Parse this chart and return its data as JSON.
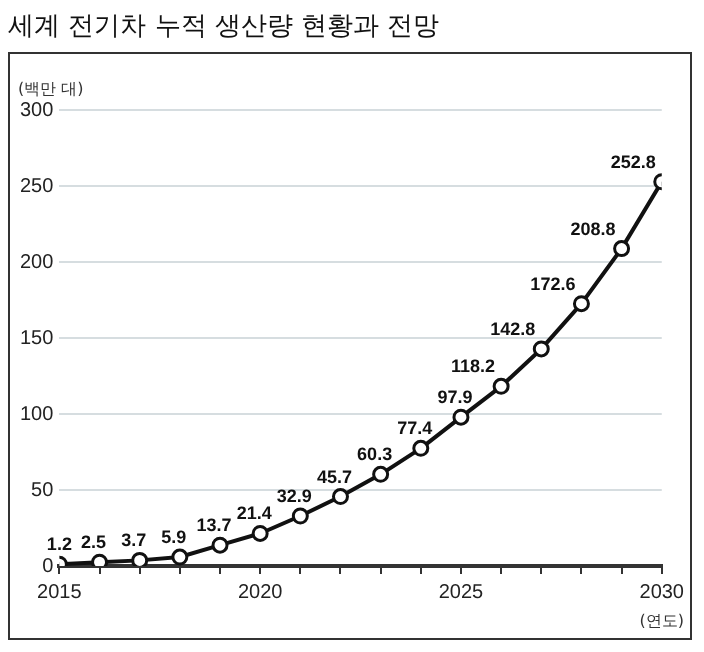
{
  "chart_data": {
    "type": "line",
    "title": "세계 전기차 누적 생산량 현황과 전망",
    "ylabel": "(백만 대)",
    "xlabel": "(연도)",
    "x": [
      2015,
      2016,
      2017,
      2018,
      2019,
      2020,
      2021,
      2022,
      2023,
      2024,
      2025,
      2026,
      2027,
      2028,
      2029,
      2030
    ],
    "series": [
      {
        "color": "#111111",
        "values": [
          1.2,
          2.5,
          3.7,
          5.9,
          13.7,
          21.4,
          32.9,
          45.7,
          60.3,
          77.4,
          97.9,
          118.2,
          142.8,
          172.6,
          208.8,
          252.8
        ]
      }
    ],
    "xlim": [
      2015,
      2030
    ],
    "xticks": [
      2015,
      {
        "value": 2016,
        "label": null
      },
      {
        "value": 2017,
        "label": null
      },
      {
        "value": 2018,
        "label": null
      },
      {
        "value": 2019,
        "label": null
      },
      2020,
      {
        "value": 2021,
        "label": null
      },
      {
        "value": 2022,
        "label": null
      },
      {
        "value": 2023,
        "label": null
      },
      {
        "value": 2024,
        "label": null
      },
      2025,
      {
        "value": 2026,
        "label": null
      },
      {
        "value": 2027,
        "label": null
      },
      {
        "value": 2028,
        "label": null
      },
      {
        "value": 2029,
        "label": null
      },
      2030
    ],
    "ylim": [
      0,
      300
    ],
    "yticks": [
      0,
      50,
      100,
      150,
      200,
      250,
      300
    ],
    "grid": "y",
    "marker": "circle",
    "line_style": "solid",
    "data_labels": true
  }
}
